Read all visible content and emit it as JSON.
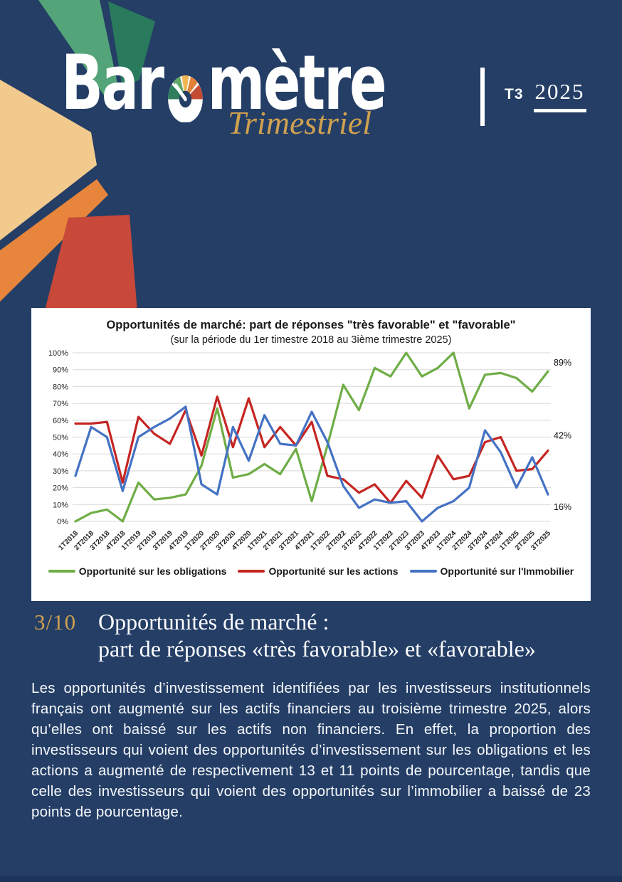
{
  "header": {
    "brand_prefix": "Bar",
    "brand_suffix": "mètre",
    "brand_subtitle": "Trimestriel",
    "issue_quarter": "T3",
    "issue_year": "2025"
  },
  "logo": {
    "fan_colors": {
      "green": "#53A478",
      "teal": "#2A7A5E",
      "cream": "#F3CA8E",
      "orange": "#E6853B",
      "red": "#C8483A"
    },
    "gauge_colors": [
      "#2E7D5C",
      "#5FA868",
      "#F0B656",
      "#E08136",
      "#C44B33"
    ]
  },
  "chart_data": {
    "type": "line",
    "title": "Opportunités de marché: part de réponses \"très favorable\" et \"favorable\"",
    "subtitle": "(sur la période du 1er timestre 2018 au 3ième trimestre 2025)",
    "categories": [
      "1T2018",
      "2T2018",
      "3T2018",
      "4T2018",
      "1T2019",
      "2T2019",
      "3T2019",
      "4T2019",
      "1T2020",
      "2T2020",
      "3T2020",
      "4T2020",
      "1T2021",
      "2T2021",
      "3T2021",
      "4T2021",
      "1T2022",
      "2T2022",
      "3T2022",
      "4T2022",
      "1T2023",
      "2T2023",
      "3T2023",
      "4T2023",
      "1T2024",
      "2T2024",
      "3T2024",
      "4T2024",
      "1T2025",
      "2T2025",
      "3T2025"
    ],
    "series": [
      {
        "name": "Opportunité sur les obligations",
        "color": "#6FAD47",
        "end_label": "89%",
        "values": [
          0,
          5,
          7,
          0,
          23,
          13,
          14,
          16,
          33,
          67,
          26,
          28,
          34,
          28,
          43,
          12,
          45,
          81,
          66,
          91,
          86,
          100,
          86,
          91,
          100,
          67,
          87,
          88,
          85,
          77,
          89
        ]
      },
      {
        "name": "Opportunité sur les actions",
        "color": "#C52522",
        "end_label": "42%",
        "values": [
          58,
          58,
          59,
          23,
          62,
          52,
          46,
          66,
          39,
          74,
          44,
          73,
          44,
          56,
          45,
          59,
          27,
          25,
          17,
          22,
          11,
          24,
          14,
          39,
          25,
          27,
          47,
          50,
          30,
          31,
          42
        ]
      },
      {
        "name": "Opportunité sur l'Immobilier",
        "color": "#4472C4",
        "end_label": "16%",
        "values": [
          27,
          56,
          50,
          18,
          50,
          56,
          61,
          68,
          22,
          16,
          56,
          36,
          63,
          46,
          45,
          65,
          47,
          21,
          8,
          13,
          11,
          12,
          0,
          8,
          12,
          20,
          54,
          41,
          20,
          38,
          16
        ]
      }
    ],
    "ylim": [
      0,
      100
    ],
    "ytick_step": 10,
    "ytick_suffix": "%",
    "grid": true,
    "legend_position": "bottom"
  },
  "section": {
    "number": "3/10",
    "title_line1": "Opportunités de marché :",
    "title_line2": "part de réponses «très favorable» et «favorable»",
    "body": "Les opportunités d’investissement identifiées par les investisseurs institutionnels français ont augmenté sur les actifs financiers au troisième trimestre 2025, alors qu’elles ont baissé sur les actifs non financiers. En effet, la proportion des investisseurs qui voient des opportunités d’investissement sur les obligations et les actions a augmenté de respectivement 13 et 11 points de pourcentage, tandis que celle des investisseurs qui voient des opportunités sur l’immobilier a baissé de 23 points de pourcentage."
  }
}
